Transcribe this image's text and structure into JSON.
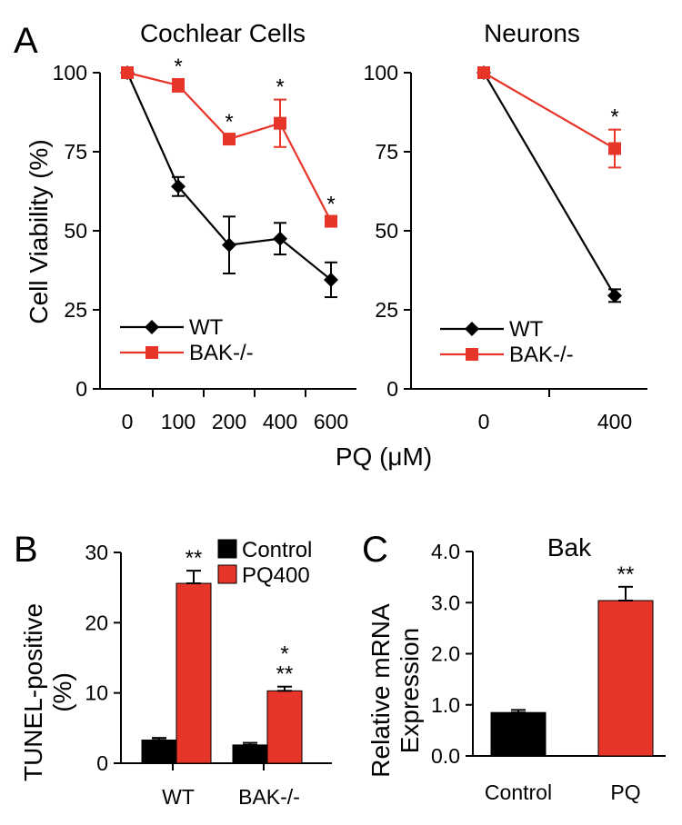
{
  "colors": {
    "wt": "#000000",
    "bak": "#e8352a",
    "control": "#000000",
    "pq": "#e8352a"
  },
  "panels": {
    "A": {
      "letter": "A",
      "xlabel": "PQ (μM)"
    },
    "B": {
      "letter": "B"
    },
    "C": {
      "letter": "C"
    }
  },
  "chart_data": [
    {
      "id": "A-cochlear",
      "type": "line",
      "title": "Cochlear Cells",
      "ylabel": "Cell Viability (%)",
      "xlabel": "PQ (μM)",
      "categories": [
        "0",
        "100",
        "200",
        "400",
        "600"
      ],
      "ylim": [
        0,
        100
      ],
      "yticks": [
        "0",
        "25",
        "50",
        "75",
        "100"
      ],
      "series": [
        {
          "name": "WT",
          "key": "wt",
          "marker": "diamond",
          "values": [
            100,
            64,
            45.5,
            47.5,
            34.5
          ],
          "errors": [
            0,
            3,
            9,
            5,
            5.5
          ]
        },
        {
          "name": "BAK-/-",
          "key": "bak",
          "marker": "square",
          "values": [
            100,
            96,
            79,
            84,
            53
          ],
          "errors": [
            0,
            2,
            1.5,
            7.5,
            1.5
          ]
        }
      ],
      "significance": [
        {
          "index": 1,
          "label": "*"
        },
        {
          "index": 2,
          "label": "*"
        },
        {
          "index": 3,
          "label": "*"
        },
        {
          "index": 4,
          "label": "*"
        }
      ],
      "legend": "bottom-left"
    },
    {
      "id": "A-neurons",
      "type": "line",
      "title": "Neurons",
      "categories": [
        "0",
        "400"
      ],
      "ylim": [
        0,
        100
      ],
      "yticks": [
        "0",
        "25",
        "50",
        "75",
        "100"
      ],
      "series": [
        {
          "name": "WT",
          "key": "wt",
          "marker": "diamond",
          "values": [
            100,
            29.5
          ],
          "errors": [
            0,
            2
          ]
        },
        {
          "name": "BAK-/-",
          "key": "bak",
          "marker": "square",
          "values": [
            100,
            76
          ],
          "errors": [
            0,
            6
          ]
        }
      ],
      "significance": [
        {
          "index": 1,
          "label": "*"
        }
      ],
      "legend": "bottom-left"
    },
    {
      "id": "B",
      "type": "bar",
      "ylabel_lines": [
        "TUNEL-positive",
        "(%)"
      ],
      "categories": [
        "WT",
        "BAK-/-"
      ],
      "ylim": [
        0,
        30
      ],
      "yticks": [
        "0",
        "10",
        "20",
        "30"
      ],
      "series": [
        {
          "name": "Control",
          "key": "control",
          "values": [
            3.3,
            2.6
          ],
          "errors": [
            0.3,
            0.3
          ]
        },
        {
          "name": "PQ400",
          "key": "pq",
          "values": [
            25.6,
            10.3
          ],
          "errors": [
            1.8,
            0.6
          ]
        }
      ],
      "significance": [
        {
          "category": 0,
          "lines": [
            "**"
          ]
        },
        {
          "category": 1,
          "lines": [
            "*",
            "**"
          ]
        }
      ],
      "legend": "top-right"
    },
    {
      "id": "C",
      "type": "bar",
      "title": "Bak",
      "ylabel_lines": [
        "Relative mRNA",
        "Expression"
      ],
      "categories": [
        "Control",
        "PQ"
      ],
      "ylim": [
        0,
        4
      ],
      "yticks": [
        "0.0",
        "1.0",
        "2.0",
        "3.0",
        "4.0"
      ],
      "values": [
        0.85,
        3.04
      ],
      "errors": [
        0.05,
        0.27
      ],
      "colors_keys": [
        "control",
        "pq"
      ],
      "significance": [
        {
          "index": 1,
          "label": "**"
        }
      ]
    }
  ]
}
